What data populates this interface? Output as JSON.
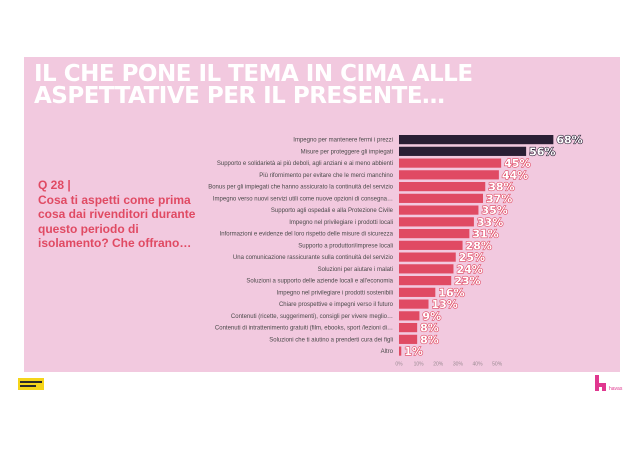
{
  "headline": "IL CHE PONE IL TEMA IN CIMA ALLE ASPETTATIVE PER IL PRESENTE…",
  "question": {
    "number": "Q 28 |",
    "text": "Cosa ti aspetti come prima cosa dai rivenditori durante questo periodo di isolamento? Che offrano…"
  },
  "colors": {
    "background": "#f2c9df",
    "headline": "#ffffff",
    "accent": "#e04a63",
    "bar_dark": "#2a1e34",
    "bar_main": "#e04a63"
  },
  "logos": {
    "left": "partner-logo",
    "right_text": "havas"
  },
  "chart_data": {
    "type": "bar",
    "orientation": "horizontal",
    "categories": [
      "Impegno per mantenere fermi i prezzi",
      "Misure per proteggere gli impiegati",
      "Supporto e solidarietà ai più deboli, agli anziani e ai meno abbienti",
      "Più rifornimento per evitare che le merci manchino",
      "Bonus per gli impiegati che hanno assicurato la continuità del servizio",
      "Impegno verso nuovi servizi utili come nuove opzioni di consegna…",
      "Supporto agli ospedali e alla Protezione Civile",
      "Impegno nel privilegiare i prodotti locali",
      "Informazioni e evidenze del loro rispetto delle misure di sicurezza",
      "Supporto a produttori/imprese locali",
      "Una comunicazione rassicurante sulla continuità del servizio",
      "Soluzioni per aiutare i malati",
      "Soluzioni a supporto delle aziende locali e all'economia",
      "Impegno nel privilegiare i prodotti sostenibili",
      "Chiare prospettive e impegni verso il futuro",
      "Contenuti (ricette, suggerimenti), consigli per vivere meglio…",
      "Contenuti di intrattenimento gratuiti (film, ebooks, sport /lezioni di…",
      "Soluzioni che ti aiutino a prenderti cura dei figli",
      "Altro"
    ],
    "values": [
      68,
      56,
      45,
      44,
      38,
      37,
      35,
      33,
      31,
      28,
      25,
      24,
      23,
      16,
      13,
      9,
      8,
      8,
      1
    ],
    "value_labels": [
      "68%",
      "56%",
      "45%",
      "44%",
      "38%",
      "37%",
      "35%",
      "33%",
      "31%",
      "28%",
      "25%",
      "24%",
      "23%",
      "16%",
      "13%",
      "9%",
      "8%",
      "8%",
      "1%"
    ],
    "dark_bars": 2,
    "xlim": [
      0,
      60
    ],
    "xticks": [
      0,
      10,
      20,
      30,
      40,
      50
    ],
    "xtick_labels": [
      "0%",
      "10%",
      "20%",
      "30%",
      "40%",
      "50%"
    ],
    "grid": false,
    "legend": "none"
  }
}
